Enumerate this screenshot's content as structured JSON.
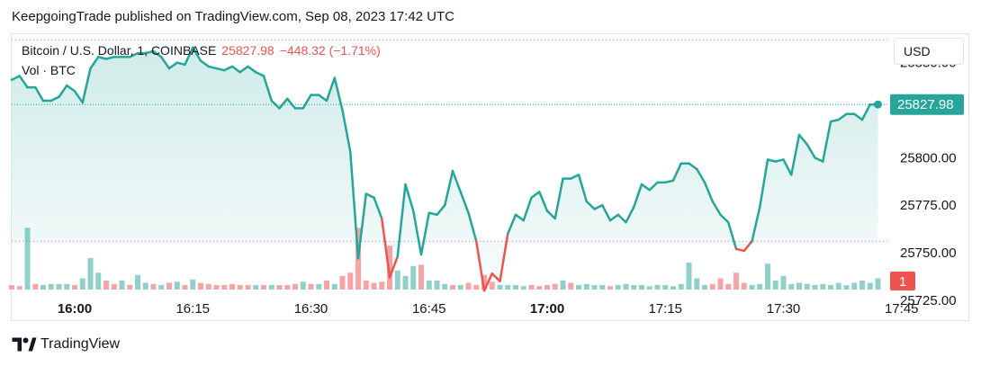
{
  "header": {
    "published_line": "KeepgoingTrade published on TradingView.com, Sep 08, 2023 17:42 UTC"
  },
  "legend": {
    "symbol": "Bitcoin / U.S. Dollar, 1, COINBASE",
    "price": "25827.98",
    "change": "−448.32 (−1.71%)",
    "volume_label": "Vol · BTC"
  },
  "toolbar": {
    "currency": "USD"
  },
  "footer": {
    "brand": "TradingView"
  },
  "colors": {
    "up_line": "#26a69a",
    "down_line": "#ef5350",
    "area_fill": "#26a69a",
    "up_volume": "#8fd1c9",
    "down_volume": "#f6a5a4"
  },
  "chart_data": {
    "type": "area",
    "x_unit": "minutes (UTC)",
    "ylim": [
      25715,
      25865
    ],
    "xlim": [
      "15:52",
      "17:52"
    ],
    "y_ticks": [
      "25850.00",
      "25825.00",
      "25800.00",
      "25775.00",
      "25750.00",
      "25725.00"
    ],
    "x_ticks": [
      "16:00",
      "16:15",
      "16:30",
      "16:45",
      "17:00",
      "17:15",
      "17:30",
      "17:45"
    ],
    "bold_x_ticks": [
      "16:00",
      "17:00"
    ],
    "last_price_label": "25827.98",
    "volume_badge": "1",
    "baseline_price": 25756,
    "grid": false,
    "series": [
      {
        "values": [
          [
            0,
            25841
          ],
          [
            1,
            25843
          ],
          [
            2,
            25837
          ],
          [
            3,
            25837
          ],
          [
            4,
            25830
          ],
          [
            5,
            25830
          ],
          [
            6,
            25832
          ],
          [
            7,
            25838
          ],
          [
            8,
            25835
          ],
          [
            9,
            25829
          ],
          [
            10,
            25847
          ],
          [
            11,
            25853
          ],
          [
            12,
            25852
          ],
          [
            13,
            25853
          ],
          [
            14,
            25853
          ],
          [
            15,
            25853
          ],
          [
            16,
            25855
          ],
          [
            17,
            25855
          ],
          [
            18,
            25856
          ],
          [
            19,
            25853
          ],
          [
            20,
            25847
          ],
          [
            21,
            25850
          ],
          [
            22,
            25849
          ],
          [
            23,
            25858
          ],
          [
            24,
            25851
          ],
          [
            25,
            25848
          ],
          [
            26,
            25847
          ],
          [
            27,
            25846
          ],
          [
            28,
            25848
          ],
          [
            29,
            25845
          ],
          [
            30,
            25848
          ],
          [
            31,
            25845
          ],
          [
            32,
            25843
          ],
          [
            33,
            25830
          ],
          [
            34,
            25826
          ],
          [
            35,
            25831
          ],
          [
            36,
            25826
          ],
          [
            37,
            25826
          ],
          [
            38,
            25833
          ],
          [
            39,
            25833
          ],
          [
            40,
            25830
          ],
          [
            41,
            25842
          ],
          [
            42,
            25825
          ],
          [
            43,
            25803
          ],
          [
            44,
            25747
          ],
          [
            45,
            25781
          ],
          [
            46,
            25779
          ],
          [
            47,
            25768
          ],
          [
            48,
            25737
          ],
          [
            49,
            25748
          ],
          [
            50,
            25786
          ],
          [
            51,
            25772
          ],
          [
            52,
            25749
          ],
          [
            53,
            25771
          ],
          [
            54,
            25770
          ],
          [
            55,
            25775
          ],
          [
            56,
            25793
          ],
          [
            57,
            25782
          ],
          [
            58,
            25771
          ],
          [
            59,
            25756
          ],
          [
            60,
            25730
          ],
          [
            61,
            25739
          ],
          [
            62,
            25735
          ],
          [
            63,
            25760
          ],
          [
            64,
            25770
          ],
          [
            65,
            25767
          ],
          [
            66,
            25779
          ],
          [
            67,
            25782
          ],
          [
            68,
            25772
          ],
          [
            69,
            25768
          ],
          [
            70,
            25789
          ],
          [
            71,
            25789
          ],
          [
            72,
            25791
          ],
          [
            73,
            25777
          ],
          [
            74,
            25773
          ],
          [
            75,
            25775
          ],
          [
            76,
            25767
          ],
          [
            77,
            25770
          ],
          [
            78,
            25766
          ],
          [
            79,
            25774
          ],
          [
            80,
            25786
          ],
          [
            81,
            25783
          ],
          [
            82,
            25787
          ],
          [
            83,
            25787
          ],
          [
            84,
            25788
          ],
          [
            85,
            25797
          ],
          [
            86,
            25797
          ],
          [
            87,
            25794
          ],
          [
            88,
            25787
          ],
          [
            89,
            25777
          ],
          [
            90,
            25770
          ],
          [
            91,
            25766
          ],
          [
            92,
            25752
          ],
          [
            93,
            25751
          ],
          [
            94,
            25756
          ],
          [
            95,
            25774
          ],
          [
            96,
            25799
          ],
          [
            97,
            25798
          ],
          [
            98,
            25799
          ],
          [
            99,
            25791
          ],
          [
            100,
            25812
          ],
          [
            101,
            25807
          ],
          [
            102,
            25800
          ],
          [
            103,
            25798
          ],
          [
            104,
            25819
          ],
          [
            105,
            25820
          ],
          [
            106,
            25823
          ],
          [
            107,
            25823
          ],
          [
            108,
            25820
          ],
          [
            109,
            25828
          ],
          [
            110,
            25827.98
          ]
        ]
      }
    ],
    "volume": [
      [
        0,
        4,
        "d"
      ],
      [
        1,
        3,
        "d"
      ],
      [
        2,
        55,
        "u"
      ],
      [
        3,
        5,
        "d"
      ],
      [
        4,
        4,
        "u"
      ],
      [
        5,
        5,
        "u"
      ],
      [
        6,
        5,
        "u"
      ],
      [
        7,
        5,
        "u"
      ],
      [
        8,
        4,
        "d"
      ],
      [
        9,
        10,
        "u"
      ],
      [
        10,
        28,
        "u"
      ],
      [
        11,
        15,
        "u"
      ],
      [
        12,
        8,
        "d"
      ],
      [
        13,
        5,
        "d"
      ],
      [
        14,
        8,
        "u"
      ],
      [
        15,
        4,
        "d"
      ],
      [
        16,
        13,
        "u"
      ],
      [
        17,
        6,
        "u"
      ],
      [
        18,
        5,
        "d"
      ],
      [
        19,
        4,
        "u"
      ],
      [
        20,
        6,
        "d"
      ],
      [
        21,
        7,
        "u"
      ],
      [
        22,
        4,
        "d"
      ],
      [
        23,
        9,
        "u"
      ],
      [
        24,
        6,
        "d"
      ],
      [
        25,
        5,
        "d"
      ],
      [
        26,
        4,
        "d"
      ],
      [
        27,
        4,
        "d"
      ],
      [
        28,
        5,
        "d"
      ],
      [
        29,
        4,
        "d"
      ],
      [
        30,
        4,
        "d"
      ],
      [
        31,
        4,
        "u"
      ],
      [
        32,
        4,
        "d"
      ],
      [
        33,
        4,
        "u"
      ],
      [
        34,
        4,
        "d"
      ],
      [
        35,
        4,
        "d"
      ],
      [
        36,
        5,
        "d"
      ],
      [
        37,
        7,
        "u"
      ],
      [
        38,
        5,
        "d"
      ],
      [
        39,
        5,
        "u"
      ],
      [
        40,
        8,
        "d"
      ],
      [
        41,
        5,
        "u"
      ],
      [
        42,
        12,
        "d"
      ],
      [
        43,
        15,
        "d"
      ],
      [
        44,
        55,
        "d"
      ],
      [
        45,
        8,
        "d"
      ],
      [
        46,
        6,
        "d"
      ],
      [
        47,
        7,
        "d"
      ],
      [
        48,
        39,
        "d"
      ],
      [
        49,
        17,
        "u"
      ],
      [
        50,
        12,
        "u"
      ],
      [
        51,
        21,
        "u"
      ],
      [
        52,
        22,
        "d"
      ],
      [
        53,
        8,
        "u"
      ],
      [
        54,
        8,
        "u"
      ],
      [
        55,
        5,
        "u"
      ],
      [
        56,
        4,
        "d"
      ],
      [
        57,
        4,
        "u"
      ],
      [
        58,
        6,
        "d"
      ],
      [
        59,
        4,
        "d"
      ],
      [
        60,
        13,
        "d"
      ],
      [
        61,
        7,
        "d"
      ],
      [
        62,
        4,
        "u"
      ],
      [
        63,
        4,
        "u"
      ],
      [
        64,
        4,
        "u"
      ],
      [
        65,
        3,
        "u"
      ],
      [
        66,
        4,
        "d"
      ],
      [
        67,
        3,
        "d"
      ],
      [
        68,
        4,
        "d"
      ],
      [
        69,
        5,
        "d"
      ],
      [
        70,
        8,
        "u"
      ],
      [
        71,
        6,
        "d"
      ],
      [
        72,
        4,
        "u"
      ],
      [
        73,
        5,
        "u"
      ],
      [
        74,
        4,
        "u"
      ],
      [
        75,
        4,
        "u"
      ],
      [
        76,
        3,
        "d"
      ],
      [
        77,
        4,
        "u"
      ],
      [
        78,
        5,
        "u"
      ],
      [
        79,
        4,
        "u"
      ],
      [
        80,
        4,
        "u"
      ],
      [
        81,
        3,
        "u"
      ],
      [
        82,
        4,
        "u"
      ],
      [
        83,
        4,
        "u"
      ],
      [
        84,
        3,
        "u"
      ],
      [
        85,
        5,
        "u"
      ],
      [
        86,
        24,
        "u"
      ],
      [
        87,
        10,
        "u"
      ],
      [
        88,
        4,
        "u"
      ],
      [
        89,
        5,
        "d"
      ],
      [
        90,
        10,
        "d"
      ],
      [
        91,
        5,
        "d"
      ],
      [
        92,
        15,
        "d"
      ],
      [
        93,
        6,
        "d"
      ],
      [
        94,
        4,
        "u"
      ],
      [
        95,
        5,
        "u"
      ],
      [
        96,
        23,
        "u"
      ],
      [
        97,
        8,
        "u"
      ],
      [
        98,
        12,
        "u"
      ],
      [
        99,
        5,
        "u"
      ],
      [
        100,
        6,
        "u"
      ],
      [
        101,
        5,
        "u"
      ],
      [
        102,
        4,
        "u"
      ],
      [
        103,
        5,
        "u"
      ],
      [
        104,
        4,
        "u"
      ],
      [
        105,
        6,
        "u"
      ],
      [
        106,
        4,
        "u"
      ],
      [
        107,
        6,
        "u"
      ],
      [
        108,
        8,
        "u"
      ],
      [
        109,
        6,
        "u"
      ],
      [
        110,
        10,
        "u"
      ]
    ]
  }
}
